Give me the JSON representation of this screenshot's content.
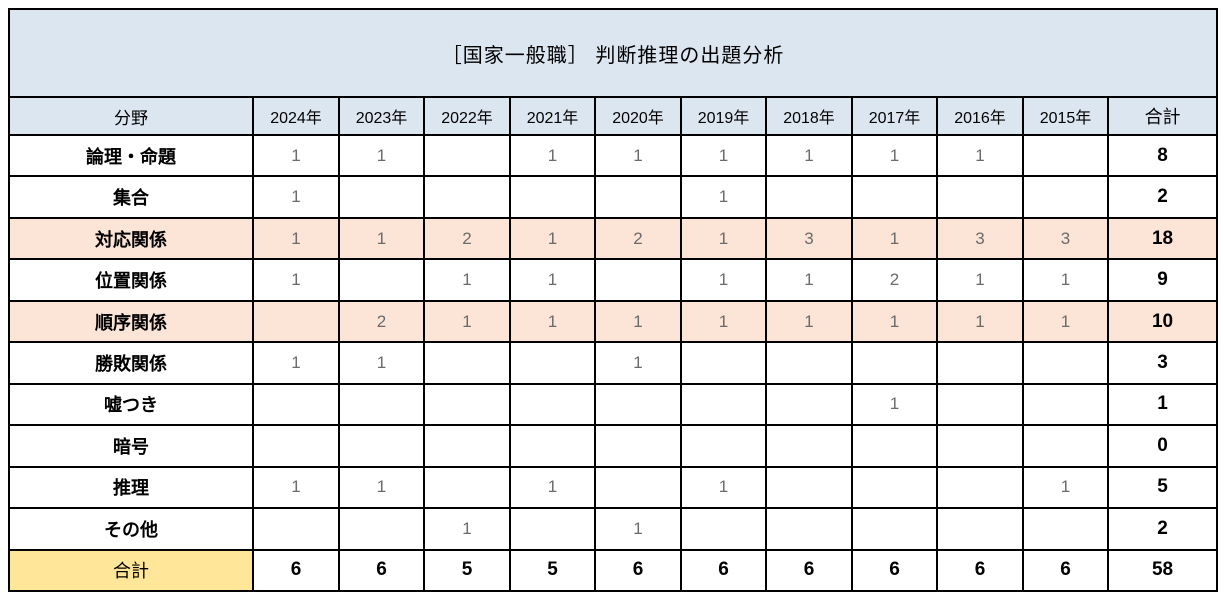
{
  "colors": {
    "header_bg": "#dce6f1",
    "highlight_row_bg": "#fce4d6",
    "total_label_bg": "#ffe699",
    "border": "#000000",
    "value_text": "#6b6b6b",
    "total_text": "#000000"
  },
  "chart_data": {
    "type": "table",
    "title": "［国家一般職］ 判断推理の出題分析",
    "columns": [
      "分野",
      "2024年",
      "2023年",
      "2022年",
      "2021年",
      "2020年",
      "2019年",
      "2018年",
      "2017年",
      "2016年",
      "2015年",
      "合計"
    ],
    "rows": [
      {
        "label": "論理・命題",
        "values": [
          1,
          1,
          "",
          1,
          1,
          1,
          1,
          1,
          1,
          ""
        ],
        "total": 8,
        "highlight": false
      },
      {
        "label": "集合",
        "values": [
          1,
          "",
          "",
          "",
          "",
          1,
          "",
          "",
          "",
          ""
        ],
        "total": 2,
        "highlight": false
      },
      {
        "label": "対応関係",
        "values": [
          1,
          1,
          2,
          1,
          2,
          1,
          3,
          1,
          3,
          3
        ],
        "total": 18,
        "highlight": true
      },
      {
        "label": "位置関係",
        "values": [
          1,
          "",
          1,
          1,
          "",
          1,
          1,
          2,
          1,
          1
        ],
        "total": 9,
        "highlight": false
      },
      {
        "label": "順序関係",
        "values": [
          "",
          2,
          1,
          1,
          1,
          1,
          1,
          1,
          1,
          1
        ],
        "total": 10,
        "highlight": true
      },
      {
        "label": "勝敗関係",
        "values": [
          1,
          1,
          "",
          "",
          1,
          "",
          "",
          "",
          "",
          ""
        ],
        "total": 3,
        "highlight": false
      },
      {
        "label": "嘘つき",
        "values": [
          "",
          "",
          "",
          "",
          "",
          "",
          "",
          1,
          "",
          ""
        ],
        "total": 1,
        "highlight": false
      },
      {
        "label": "暗号",
        "values": [
          "",
          "",
          "",
          "",
          "",
          "",
          "",
          "",
          "",
          ""
        ],
        "total": 0,
        "highlight": false
      },
      {
        "label": "推理",
        "values": [
          1,
          1,
          "",
          1,
          "",
          1,
          "",
          "",
          "",
          1
        ],
        "total": 5,
        "highlight": false
      },
      {
        "label": "その他",
        "values": [
          "",
          "",
          1,
          "",
          1,
          "",
          "",
          "",
          "",
          ""
        ],
        "total": 2,
        "highlight": false
      }
    ],
    "total_row": {
      "label": "合計",
      "values": [
        6,
        6,
        5,
        5,
        6,
        6,
        6,
        6,
        6,
        6
      ],
      "total": 58
    }
  }
}
